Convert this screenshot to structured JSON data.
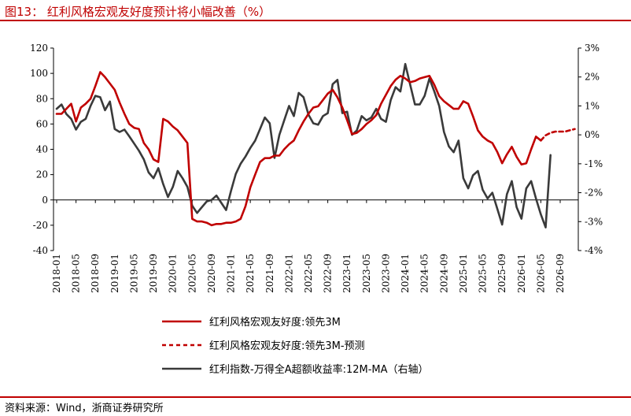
{
  "header": {
    "title": "图13： 红利风格宏观友好度预计将小幅改善（%）"
  },
  "footer": {
    "source": "资料来源：Wind，浙商证券研究所"
  },
  "chart_data": {
    "type": "line",
    "title": "图13： 红利风格宏观友好度预计将小幅改善（%）",
    "left_axis": {
      "ylim": [
        -40,
        120
      ],
      "ticks": [
        "-40",
        "-20",
        "0",
        "20",
        "40",
        "60",
        "80",
        "100",
        "120"
      ]
    },
    "right_axis": {
      "ylim": [
        -4,
        3
      ],
      "ticks": [
        "-4%",
        "-3%",
        "-2%",
        "-1%",
        "0%",
        "1%",
        "2%",
        "3%"
      ]
    },
    "x_ticks": [
      "2018-01",
      "2018-05",
      "2018-09",
      "2019-01",
      "2019-05",
      "2019-09",
      "2020-01",
      "2020-05",
      "2020-09",
      "2021-01",
      "2021-05",
      "2021-09",
      "2022-01",
      "2022-05",
      "2022-09",
      "2023-01",
      "2023-05",
      "2023-09",
      "2024-01",
      "2024-05",
      "2024-09",
      "2025-01",
      "2025-05",
      "2025-09",
      "2026-01",
      "2026-05",
      "2026-09"
    ],
    "grid": false,
    "legend_placement": "bottom",
    "series": [
      {
        "name": "红利风格宏观友好度:领先3M",
        "axis": "left",
        "color": "#c00000",
        "style": "solid",
        "points": [
          [
            "2018-01",
            68
          ],
          [
            "2018-02",
            68
          ],
          [
            "2018-03",
            72
          ],
          [
            "2018-04",
            76
          ],
          [
            "2018-05",
            62
          ],
          [
            "2018-06",
            73
          ],
          [
            "2018-07",
            76
          ],
          [
            "2018-08",
            80
          ],
          [
            "2018-09",
            90
          ],
          [
            "2018-10",
            101
          ],
          [
            "2018-11",
            97
          ],
          [
            "2018-12",
            92
          ],
          [
            "2019-01",
            87
          ],
          [
            "2019-02",
            77
          ],
          [
            "2019-03",
            68
          ],
          [
            "2019-04",
            60
          ],
          [
            "2019-05",
            57
          ],
          [
            "2019-06",
            56
          ],
          [
            "2019-07",
            45
          ],
          [
            "2019-08",
            40
          ],
          [
            "2019-09",
            32
          ],
          [
            "2019-10",
            30
          ],
          [
            "2019-11",
            64
          ],
          [
            "2019-12",
            62
          ],
          [
            "2020-01",
            58
          ],
          [
            "2020-02",
            55
          ],
          [
            "2020-03",
            50
          ],
          [
            "2020-04",
            45
          ],
          [
            "2020-05",
            -15
          ],
          [
            "2020-06",
            -17
          ],
          [
            "2020-07",
            -17
          ],
          [
            "2020-08",
            -18
          ],
          [
            "2020-09",
            -20
          ],
          [
            "2020-10",
            -19
          ],
          [
            "2020-11",
            -19
          ],
          [
            "2020-12",
            -18
          ],
          [
            "2021-01",
            -18
          ],
          [
            "2021-02",
            -17
          ],
          [
            "2021-03",
            -15
          ],
          [
            "2021-04",
            -5
          ],
          [
            "2021-05",
            10
          ],
          [
            "2021-06",
            20
          ],
          [
            "2021-07",
            30
          ],
          [
            "2021-08",
            33
          ],
          [
            "2021-09",
            33
          ],
          [
            "2021-10",
            35
          ],
          [
            "2021-11",
            35
          ],
          [
            "2021-12",
            40
          ],
          [
            "2022-01",
            44
          ],
          [
            "2022-02",
            47
          ],
          [
            "2022-03",
            55
          ],
          [
            "2022-04",
            62
          ],
          [
            "2022-05",
            68
          ],
          [
            "2022-06",
            73
          ],
          [
            "2022-07",
            74
          ],
          [
            "2022-08",
            79
          ],
          [
            "2022-09",
            84
          ],
          [
            "2022-10",
            87
          ],
          [
            "2022-11",
            81
          ],
          [
            "2022-12",
            73
          ],
          [
            "2023-01",
            63
          ],
          [
            "2023-02",
            52
          ],
          [
            "2023-03",
            53
          ],
          [
            "2023-04",
            56
          ],
          [
            "2023-05",
            60
          ],
          [
            "2023-06",
            63
          ],
          [
            "2023-07",
            67
          ],
          [
            "2023-08",
            76
          ],
          [
            "2023-09",
            83
          ],
          [
            "2023-10",
            90
          ],
          [
            "2023-11",
            95
          ],
          [
            "2023-12",
            98
          ],
          [
            "2024-01",
            96
          ],
          [
            "2024-02",
            93
          ],
          [
            "2024-03",
            94
          ],
          [
            "2024-04",
            96
          ],
          [
            "2024-05",
            97
          ],
          [
            "2024-06",
            98
          ],
          [
            "2024-07",
            91
          ],
          [
            "2024-08",
            82
          ],
          [
            "2024-09",
            78
          ],
          [
            "2024-10",
            75
          ],
          [
            "2024-11",
            72
          ],
          [
            "2024-12",
            72
          ],
          [
            "2025-01",
            78
          ],
          [
            "2025-02",
            76
          ],
          [
            "2025-03",
            66
          ],
          [
            "2025-04",
            55
          ],
          [
            "2025-05",
            50
          ],
          [
            "2025-06",
            47
          ],
          [
            "2025-07",
            45
          ],
          [
            "2025-08",
            38
          ],
          [
            "2025-09",
            29
          ],
          [
            "2025-10",
            36
          ],
          [
            "2025-11",
            42
          ],
          [
            "2025-12",
            34
          ],
          [
            "2026-01",
            28
          ],
          [
            "2026-02",
            29
          ],
          [
            "2026-03",
            40
          ],
          [
            "2026-04",
            50
          ],
          [
            "2026-05",
            47
          ]
        ]
      },
      {
        "name": "红利风格宏观友好度:领先3M-预测",
        "axis": "left",
        "color": "#c00000",
        "style": "dashed",
        "points": [
          [
            "2026-05",
            47
          ],
          [
            "2026-06",
            51
          ],
          [
            "2026-07",
            53
          ],
          [
            "2026-08",
            54
          ],
          [
            "2026-09",
            54
          ],
          [
            "2026-10",
            54
          ],
          [
            "2026-11",
            55
          ],
          [
            "2026-12",
            56
          ]
        ]
      },
      {
        "name": "红利指数-万得全A超额收益率:12M-MA（右轴）",
        "axis": "right",
        "color": "#3a3a3a",
        "style": "solid",
        "points": [
          [
            "2018-01",
            0.9
          ],
          [
            "2018-02",
            1.05
          ],
          [
            "2018-03",
            0.72
          ],
          [
            "2018-04",
            0.55
          ],
          [
            "2018-05",
            0.18
          ],
          [
            "2018-06",
            0.45
          ],
          [
            "2018-07",
            0.55
          ],
          [
            "2018-08",
            1.0
          ],
          [
            "2018-09",
            1.35
          ],
          [
            "2018-10",
            1.3
          ],
          [
            "2018-11",
            0.85
          ],
          [
            "2018-12",
            1.15
          ],
          [
            "2019-01",
            0.2
          ],
          [
            "2019-02",
            0.1
          ],
          [
            "2019-03",
            0.18
          ],
          [
            "2019-04",
            -0.05
          ],
          [
            "2019-05",
            -0.3
          ],
          [
            "2019-06",
            -0.55
          ],
          [
            "2019-07",
            -0.85
          ],
          [
            "2019-08",
            -1.3
          ],
          [
            "2019-09",
            -1.5
          ],
          [
            "2019-10",
            -1.15
          ],
          [
            "2019-11",
            -1.7
          ],
          [
            "2019-12",
            -2.15
          ],
          [
            "2020-01",
            -1.8
          ],
          [
            "2020-02",
            -1.25
          ],
          [
            "2020-03",
            -1.5
          ],
          [
            "2020-04",
            -1.8
          ],
          [
            "2020-05",
            -2.45
          ],
          [
            "2020-06",
            -2.7
          ],
          [
            "2020-07",
            -2.5
          ],
          [
            "2020-08",
            -2.3
          ],
          [
            "2020-09",
            -2.25
          ],
          [
            "2020-10",
            -2.1
          ],
          [
            "2020-11",
            -2.35
          ],
          [
            "2020-12",
            -2.6
          ],
          [
            "2021-01",
            -1.95
          ],
          [
            "2021-02",
            -1.35
          ],
          [
            "2021-03",
            -1.0
          ],
          [
            "2021-04",
            -0.75
          ],
          [
            "2021-05",
            -0.45
          ],
          [
            "2021-06",
            -0.2
          ],
          [
            "2021-07",
            0.2
          ],
          [
            "2021-08",
            0.6
          ],
          [
            "2021-09",
            0.4
          ],
          [
            "2021-10",
            -0.8
          ],
          [
            "2021-11",
            0.0
          ],
          [
            "2021-12",
            0.5
          ],
          [
            "2022-01",
            1.0
          ],
          [
            "2022-02",
            0.65
          ],
          [
            "2022-03",
            1.45
          ],
          [
            "2022-04",
            1.3
          ],
          [
            "2022-05",
            0.7
          ],
          [
            "2022-06",
            0.4
          ],
          [
            "2022-07",
            0.35
          ],
          [
            "2022-08",
            0.65
          ],
          [
            "2022-09",
            0.75
          ],
          [
            "2022-10",
            1.75
          ],
          [
            "2022-11",
            1.9
          ],
          [
            "2022-12",
            0.75
          ],
          [
            "2023-01",
            0.8
          ],
          [
            "2023-02",
            0.0
          ],
          [
            "2023-03",
            0.15
          ],
          [
            "2023-04",
            0.65
          ],
          [
            "2023-05",
            0.5
          ],
          [
            "2023-06",
            0.6
          ],
          [
            "2023-07",
            0.9
          ],
          [
            "2023-08",
            0.55
          ],
          [
            "2023-09",
            0.45
          ],
          [
            "2023-10",
            1.2
          ],
          [
            "2023-11",
            1.65
          ],
          [
            "2023-12",
            1.5
          ],
          [
            "2024-01",
            2.45
          ],
          [
            "2024-02",
            1.75
          ],
          [
            "2024-03",
            1.05
          ],
          [
            "2024-04",
            1.05
          ],
          [
            "2024-05",
            1.35
          ],
          [
            "2024-06",
            1.95
          ],
          [
            "2024-07",
            1.5
          ],
          [
            "2024-08",
            1.0
          ],
          [
            "2024-09",
            0.1
          ],
          [
            "2024-10",
            -0.4
          ],
          [
            "2024-11",
            -0.6
          ],
          [
            "2024-12",
            -0.2
          ],
          [
            "2025-01",
            -1.5
          ],
          [
            "2025-02",
            -1.85
          ],
          [
            "2025-03",
            -1.4
          ],
          [
            "2025-04",
            -1.25
          ],
          [
            "2025-05",
            -1.9
          ],
          [
            "2025-06",
            -2.2
          ],
          [
            "2025-07",
            -2.0
          ],
          [
            "2025-08",
            -2.55
          ],
          [
            "2025-09",
            -3.1
          ],
          [
            "2025-10",
            -2.05
          ],
          [
            "2025-11",
            -1.6
          ],
          [
            "2025-12",
            -2.5
          ],
          [
            "2026-01",
            -2.9
          ],
          [
            "2026-02",
            -1.85
          ],
          [
            "2026-03",
            -1.6
          ],
          [
            "2026-04",
            -2.2
          ],
          [
            "2026-05",
            -2.75
          ],
          [
            "2026-06",
            -3.2
          ],
          [
            "2026-07",
            -0.7
          ]
        ]
      }
    ]
  }
}
